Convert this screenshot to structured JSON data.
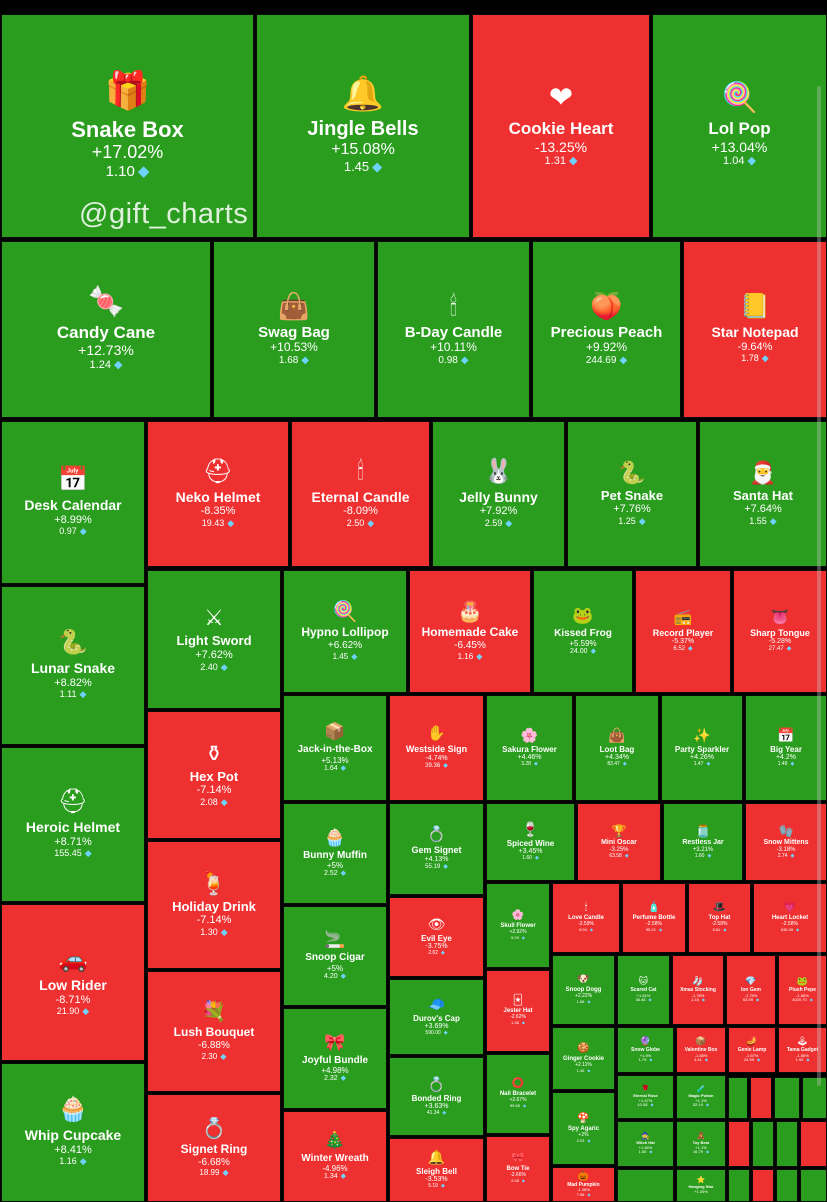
{
  "watermark": "@gift_charts",
  "colors": {
    "up": "#2a9d1e",
    "down": "#ef3030",
    "gem": "#6fd3ff"
  },
  "chart_data": {
    "type": "treemap",
    "title": "",
    "items": [
      {
        "name": "Snake Box",
        "change": "+17.02%",
        "price": "1.10",
        "icon": "gift-box-icon"
      },
      {
        "name": "Jingle Bells",
        "change": "+15.08%",
        "price": "1.45",
        "icon": "bells-icon"
      },
      {
        "name": "Cookie Heart",
        "change": "-13.25%",
        "price": "1.31",
        "icon": "cookie-heart-icon"
      },
      {
        "name": "Lol Pop",
        "change": "+13.04%",
        "price": "1.04",
        "icon": "lollipop-icon"
      },
      {
        "name": "Candy Cane",
        "change": "+12.73%",
        "price": "1.24",
        "icon": "candy-cane-icon"
      },
      {
        "name": "Swag Bag",
        "change": "+10.53%",
        "price": "1.68",
        "icon": "bag-icon"
      },
      {
        "name": "B-Day Candle",
        "change": "+10.11%",
        "price": "0.98",
        "icon": "candle-icon"
      },
      {
        "name": "Precious Peach",
        "change": "+9.92%",
        "price": "244.69",
        "icon": "peach-icon"
      },
      {
        "name": "Star Notepad",
        "change": "-9.64%",
        "price": "1.78",
        "icon": "notepad-icon"
      },
      {
        "name": "Desk Calendar",
        "change": "+8.99%",
        "price": "0.97",
        "icon": "calendar-icon"
      },
      {
        "name": "Neko Helmet",
        "change": "-8.35%",
        "price": "19.43",
        "icon": "helmet-icon"
      },
      {
        "name": "Eternal Candle",
        "change": "-8.09%",
        "price": "2.50",
        "icon": "candle-icon"
      },
      {
        "name": "Jelly Bunny",
        "change": "+7.92%",
        "price": "2.59",
        "icon": "bunny-icon"
      },
      {
        "name": "Pet Snake",
        "change": "+7.76%",
        "price": "1.25",
        "icon": "snake-icon"
      },
      {
        "name": "Santa Hat",
        "change": "+7.64%",
        "price": "1.55",
        "icon": "santa-hat-icon"
      },
      {
        "name": "Lunar Snake",
        "change": "+8.82%",
        "price": "1.11",
        "icon": "snake-icon"
      },
      {
        "name": "Light Sword",
        "change": "+7.62%",
        "price": "2.40",
        "icon": "sword-icon"
      },
      {
        "name": "Hypno Lollipop",
        "change": "+6.62%",
        "price": "1.45",
        "icon": "lollipop-icon"
      },
      {
        "name": "Homemade Cake",
        "change": "-6.45%",
        "price": "1.16",
        "icon": "cake-icon"
      },
      {
        "name": "Kissed Frog",
        "change": "+5.59%",
        "price": "24.00",
        "icon": "frog-icon"
      },
      {
        "name": "Record Player",
        "change": "-5.37%",
        "price": "6.52",
        "icon": "record-player-icon"
      },
      {
        "name": "Sharp Tongue",
        "change": "-5.28%",
        "price": "27.47",
        "icon": "tongue-icon"
      },
      {
        "name": "Heroic Helmet",
        "change": "+8.71%",
        "price": "155.45",
        "icon": "helmet-icon"
      },
      {
        "name": "Hex Pot",
        "change": "-7.14%",
        "price": "2.08",
        "icon": "pot-icon"
      },
      {
        "name": "Jack-in-the-Box",
        "change": "+5.13%",
        "price": "1.64",
        "icon": "box-icon"
      },
      {
        "name": "Westside Sign",
        "change": "-4.74%",
        "price": "39.36",
        "icon": "hand-sign-icon"
      },
      {
        "name": "Sakura Flower",
        "change": "+4.46%",
        "price": "3.28",
        "icon": "flower-icon"
      },
      {
        "name": "Loot Bag",
        "change": "+4.34%",
        "price": "83.47",
        "icon": "bag-icon"
      },
      {
        "name": "Party Sparkler",
        "change": "+4.26%",
        "price": "1.47",
        "icon": "sparkler-icon"
      },
      {
        "name": "Big Year",
        "change": "+4.2%",
        "price": "1.49",
        "icon": "calendar-icon"
      },
      {
        "name": "Bunny Muffin",
        "change": "+5%",
        "price": "2.52",
        "icon": "muffin-icon"
      },
      {
        "name": "Gem Signet",
        "change": "+4.13%",
        "price": "55.19",
        "icon": "ring-icon"
      },
      {
        "name": "Spiced Wine",
        "change": "+3.45%",
        "price": "1.60",
        "icon": "wine-icon"
      },
      {
        "name": "Mini Oscar",
        "change": "-3.25%",
        "price": "63.58",
        "icon": "trophy-icon"
      },
      {
        "name": "Restless Jar",
        "change": "+3.21%",
        "price": "1.60",
        "icon": "jar-icon"
      },
      {
        "name": "Snow Mittens",
        "change": "-3.18%",
        "price": "2.74",
        "icon": "mittens-icon"
      },
      {
        "name": "Holiday Drink",
        "change": "-7.14%",
        "price": "1.30",
        "icon": "drink-icon"
      },
      {
        "name": "Snoop Cigar",
        "change": "+5%",
        "price": "4.20",
        "icon": "cigar-icon"
      },
      {
        "name": "Evil Eye",
        "change": "-3.75%",
        "price": "2.62",
        "icon": "eye-icon"
      },
      {
        "name": "Skull Flower",
        "change": "+2.92%",
        "price": "5.09",
        "icon": "flower-icon"
      },
      {
        "name": "Love Candle",
        "change": "-2.59%",
        "price": "5.94",
        "icon": "candle-icon"
      },
      {
        "name": "Perfume Bottle",
        "change": "-2.58%",
        "price": "95.21",
        "icon": "perfume-icon"
      },
      {
        "name": "Top Hat",
        "change": "-2.58%",
        "price": "5.81",
        "icon": "top-hat-icon"
      },
      {
        "name": "Heart Locket",
        "change": "-2.58%",
        "price": "639.39",
        "icon": "locket-icon"
      },
      {
        "name": "Lunar Snake_",
        "change": "",
        "price": "",
        "icon": ""
      },
      {
        "name": "Low Rider",
        "change": "-8.71%",
        "price": "21.90",
        "icon": "car-icon"
      },
      {
        "name": "Lush Bouquet",
        "change": "-6.88%",
        "price": "2.30",
        "icon": "bouquet-icon"
      },
      {
        "name": "Durov's Cap",
        "change": "+3.69%",
        "price": "590.00",
        "icon": "cap-icon"
      },
      {
        "name": "Jester Hat",
        "change": "-2.62%",
        "price": "1.38",
        "icon": "jester-hat-icon"
      },
      {
        "name": "Snoop Dogg",
        "change": "+2.22%",
        "price": "1.58",
        "icon": "dog-icon"
      },
      {
        "name": "Scared Cat",
        "change": "+1.81%",
        "price": "38.48",
        "icon": "cat-icon"
      },
      {
        "name": "Xmas Stocking",
        "change": "-1.78%",
        "price": "1.16",
        "icon": "stocking-icon"
      },
      {
        "name": "Ion Gem",
        "change": "-1.75%",
        "price": "63.59",
        "icon": "gem-icon"
      },
      {
        "name": "Plush Pepe",
        "change": "-1.66%",
        "price": "4020.70",
        "icon": "frog-icon"
      },
      {
        "name": "Joyful Bundle",
        "change": "+4.98%",
        "price": "2.32",
        "icon": "bundle-icon"
      },
      {
        "name": "Ginger Cookie",
        "change": "+2.11%",
        "price": "1.45",
        "icon": "cookie-icon"
      },
      {
        "name": "Snow Globe",
        "change": "+1.5%",
        "price": "1.79",
        "icon": "globe-icon"
      },
      {
        "name": "Valentine Box",
        "change": "-1.58%",
        "price": "4.41",
        "icon": "box-icon"
      },
      {
        "name": "Genie Lamp",
        "change": "-1.57%",
        "price": "24.59",
        "icon": "lamp-icon"
      },
      {
        "name": "Tama Gadget",
        "change": "-1.56%",
        "price": "1.92",
        "icon": "gadget-icon"
      },
      {
        "name": "Bonded Ring",
        "change": "+3.63%",
        "price": "41.34",
        "icon": "ring-icon"
      },
      {
        "name": "Nail Bracelet",
        "change": "+2.67%",
        "price": "99.55",
        "icon": "bracelet-icon"
      },
      {
        "name": "Eternal Rose",
        "change": "+1.47%",
        "price": "10.08",
        "icon": "rose-icon"
      },
      {
        "name": "Magic Potion",
        "change": "+1.1%",
        "price": "52.19",
        "icon": "potion-icon"
      },
      {
        "name": "Whip Cupcake",
        "change": "+8.41%",
        "price": "1.16",
        "icon": "cupcake-icon"
      },
      {
        "name": "Signet Ring",
        "change": "-6.68%",
        "price": "18.99",
        "icon": "ring-icon"
      },
      {
        "name": "Winter Wreath",
        "change": "-4.96%",
        "price": "1.34",
        "icon": "wreath-icon"
      },
      {
        "name": "Sleigh Bell",
        "change": "-3.53%",
        "price": "5.19",
        "icon": "bell-icon"
      },
      {
        "name": "Bow Tie",
        "change": "-2.66%",
        "price": "2.08",
        "icon": "bow-tie-icon"
      },
      {
        "name": "Spy Agaric",
        "change": "+2%",
        "price": "2.03",
        "icon": "mushroom-icon"
      },
      {
        "name": "Witch Hat",
        "change": "+1.46%",
        "price": "1.60",
        "icon": "witch-hat-icon"
      },
      {
        "name": "Toy Bear",
        "change": "+1.1%",
        "price": "16.79",
        "icon": "bear-icon"
      },
      {
        "name": "Mad Pumpkin",
        "change": "-1.05%",
        "price": "7.96",
        "icon": "pumpkin-icon"
      },
      {
        "name": "Hanging Star",
        "change": "+1.05%",
        "price": "",
        "icon": "star-icon"
      }
    ]
  }
}
